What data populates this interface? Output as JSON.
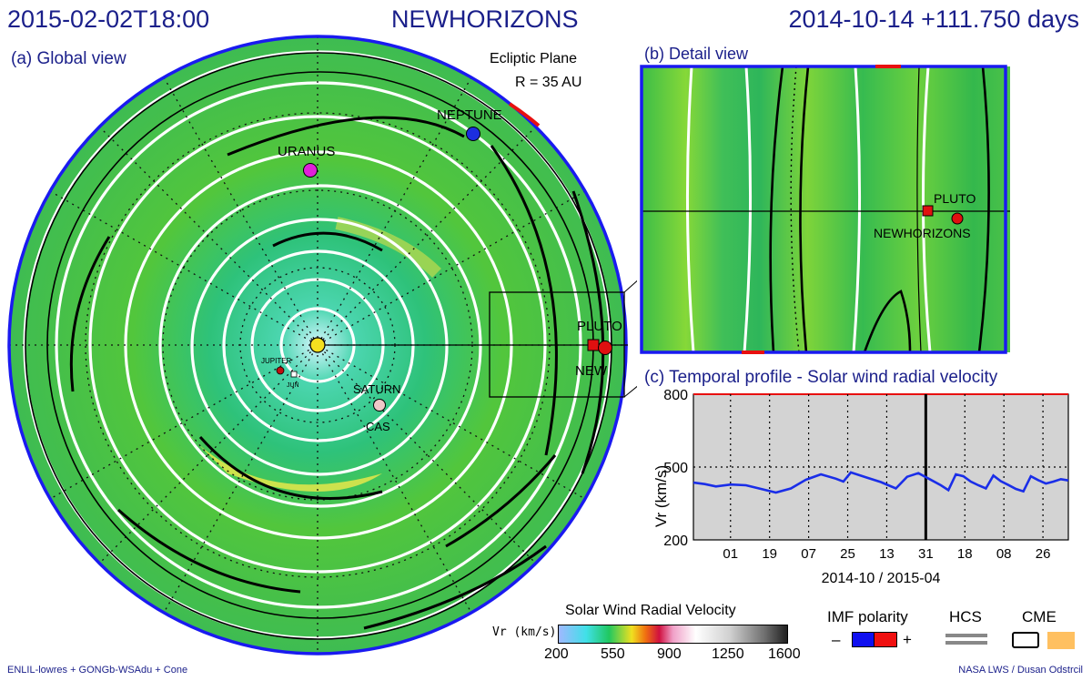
{
  "header": {
    "datetime": "2015-02-02T18:00",
    "mission": "NEWHORIZONS",
    "elapsed": "2014-10-14 +111.750 days"
  },
  "global_view": {
    "title": "(a) Global view",
    "plane": "Ecliptic Plane",
    "radius": "R = 35 AU",
    "bodies": [
      {
        "label": "NEPTUNE",
        "color": "#1c2ee0"
      },
      {
        "label": "URANUS",
        "color": "#e020d8"
      },
      {
        "label": "PLUTO",
        "color": "#e01010"
      },
      {
        "label": "NEW",
        "color": "#e01010"
      },
      {
        "label": "SATURN",
        "color": "#f0c8c8"
      },
      {
        "label": "CAS",
        "color": "#f0c8c8"
      },
      {
        "label": "JUPITER",
        "color": "#c01010"
      },
      {
        "label": "JUN",
        "color": "#ffffff"
      }
    ]
  },
  "detail_view": {
    "title": "(b) Detail view",
    "bodies": [
      {
        "label": "PLUTO"
      },
      {
        "label": "NEWHORIZONS"
      }
    ]
  },
  "temporal": {
    "title": "(c) Temporal profile - Solar wind radial velocity",
    "ylabel": "Vr (km/s)",
    "xlabel": "2014-10 / 2015-04"
  },
  "chart_data": {
    "type": "line",
    "title": "(c) Temporal profile - Solar wind radial velocity",
    "xlabel": "2014-10 / 2015-04",
    "ylabel": "Vr (km/s)",
    "ylim": [
      200,
      800
    ],
    "yticks": [
      200,
      500,
      800
    ],
    "xticks": [
      "01",
      "19",
      "07",
      "25",
      "13",
      "31",
      "18",
      "08",
      "26"
    ],
    "current_time_marker": "31",
    "grid": true,
    "series": [
      {
        "color": "#1a2ee8",
        "x": [
          0,
          0.03,
          0.06,
          0.1,
          0.14,
          0.18,
          0.22,
          0.26,
          0.3,
          0.34,
          0.38,
          0.4,
          0.42,
          0.46,
          0.5,
          0.52,
          0.54,
          0.57,
          0.6,
          0.63,
          0.66,
          0.68,
          0.7,
          0.72,
          0.74,
          0.76,
          0.78,
          0.8,
          0.82,
          0.84,
          0.86,
          0.88,
          0.9,
          0.92,
          0.94,
          0.96,
          0.98,
          1.0
        ],
        "values": [
          436,
          430,
          420,
          428,
          425,
          410,
          395,
          412,
          448,
          470,
          452,
          440,
          478,
          458,
          438,
          425,
          412,
          460,
          475,
          450,
          425,
          405,
          470,
          462,
          440,
          425,
          412,
          465,
          442,
          426,
          410,
          400,
          462,
          446,
          432,
          440,
          450,
          445
        ]
      }
    ]
  },
  "colorbar": {
    "title": "Solar Wind Radial Velocity",
    "unit": "Vr (km/s)",
    "ticks": [
      "200",
      "550",
      "900",
      "1250",
      "1600"
    ]
  },
  "legend": {
    "imf_label": "IMF polarity",
    "minus": "–",
    "plus": "+",
    "hcs_label": "HCS",
    "cme_label": "CME",
    "imf_negative_color": "#1010f0",
    "imf_positive_color": "#f01010",
    "cme_color": "#ffc060"
  },
  "footer": {
    "left": "ENLIL-lowres + GONGb-WSAdu + Cone",
    "right": "NASA LWS / Dusan Odstrcil"
  }
}
